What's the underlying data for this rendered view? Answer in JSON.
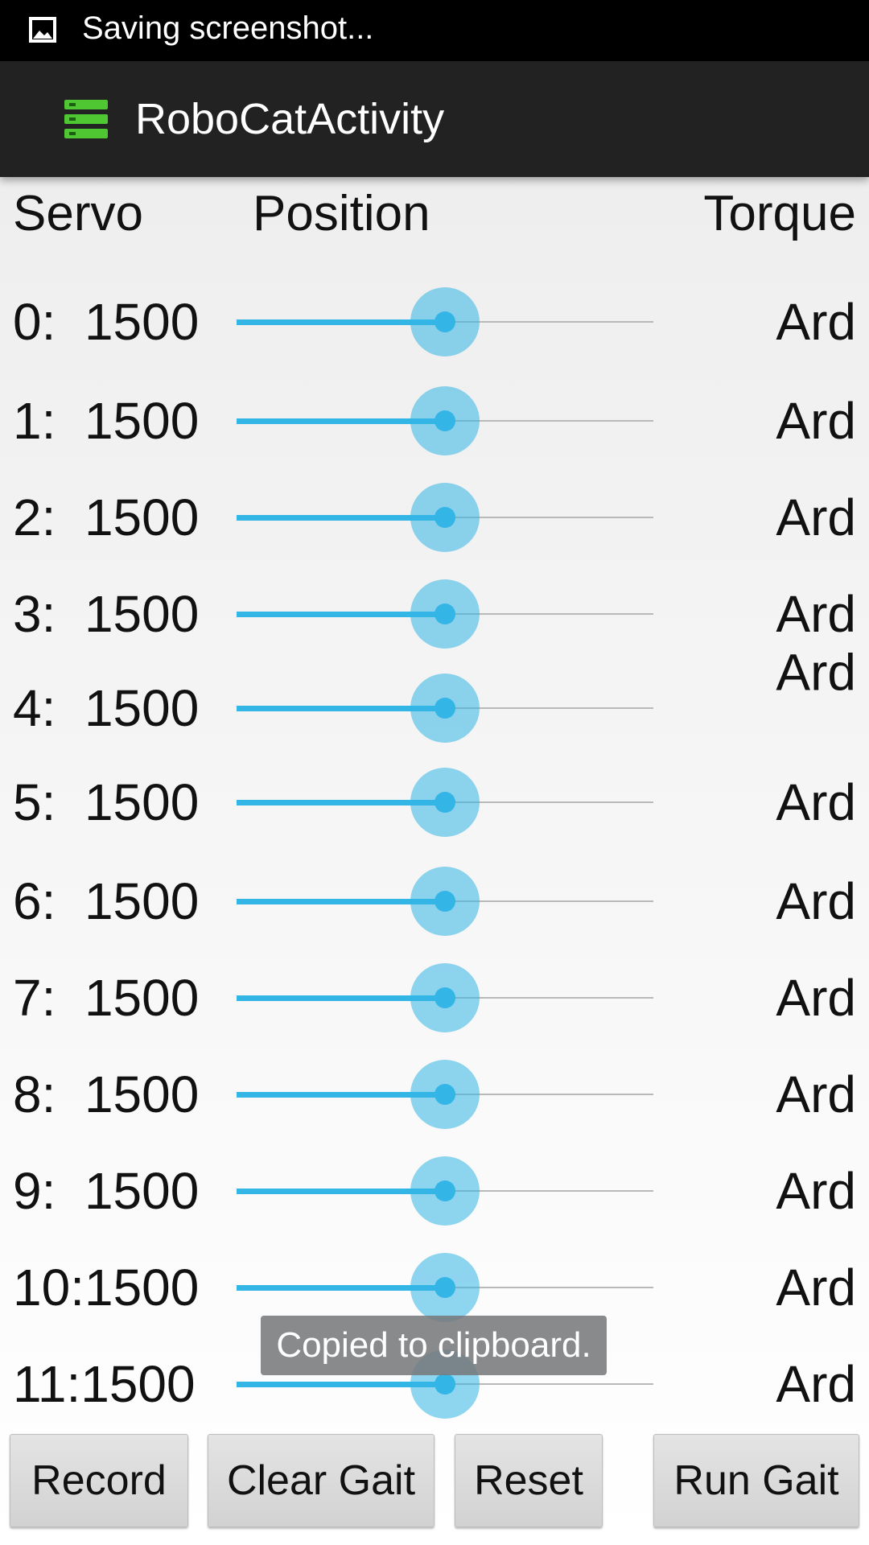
{
  "status_bar": {
    "icon": "image-icon",
    "text": "Saving screenshot..."
  },
  "action_bar": {
    "icon": "app-icon",
    "title": "RoboCatActivity"
  },
  "header": {
    "servo": "Servo",
    "position": "Position",
    "torque": "Torque"
  },
  "servos": [
    {
      "label": "0:  1500",
      "position": 0.5,
      "torque": "Ard"
    },
    {
      "label": "1:  1500",
      "position": 0.5,
      "torque": "Ard"
    },
    {
      "label": "2:  1500",
      "position": 0.5,
      "torque": "Ard"
    },
    {
      "label": "3:  1500",
      "position": 0.5,
      "torque": "Ard"
    },
    {
      "label": "4:  1500",
      "position": 0.5,
      "torque": "Ard"
    },
    {
      "label": "5:  1500",
      "position": 0.5,
      "torque": "Ard"
    },
    {
      "label": "6:  1500",
      "position": 0.5,
      "torque": "Ard"
    },
    {
      "label": "7:  1500",
      "position": 0.5,
      "torque": "Ard"
    },
    {
      "label": "8:  1500",
      "position": 0.5,
      "torque": "Ard"
    },
    {
      "label": "9:  1500",
      "position": 0.5,
      "torque": "Ard"
    },
    {
      "label": "10:1500",
      "position": 0.5,
      "torque": "Ard"
    },
    {
      "label": "11:1500",
      "position": 0.5,
      "torque": "Ard"
    }
  ],
  "toast": "Copied to clipboard.",
  "buttons": {
    "record": "Record",
    "clear_gait": "Clear Gait",
    "reset": "Reset",
    "run_gait": "Run Gait"
  },
  "colors": {
    "accent": "#33b5e5",
    "app_icon": "#4fc733",
    "action_bar": "#222222",
    "status_bar": "#000000"
  }
}
